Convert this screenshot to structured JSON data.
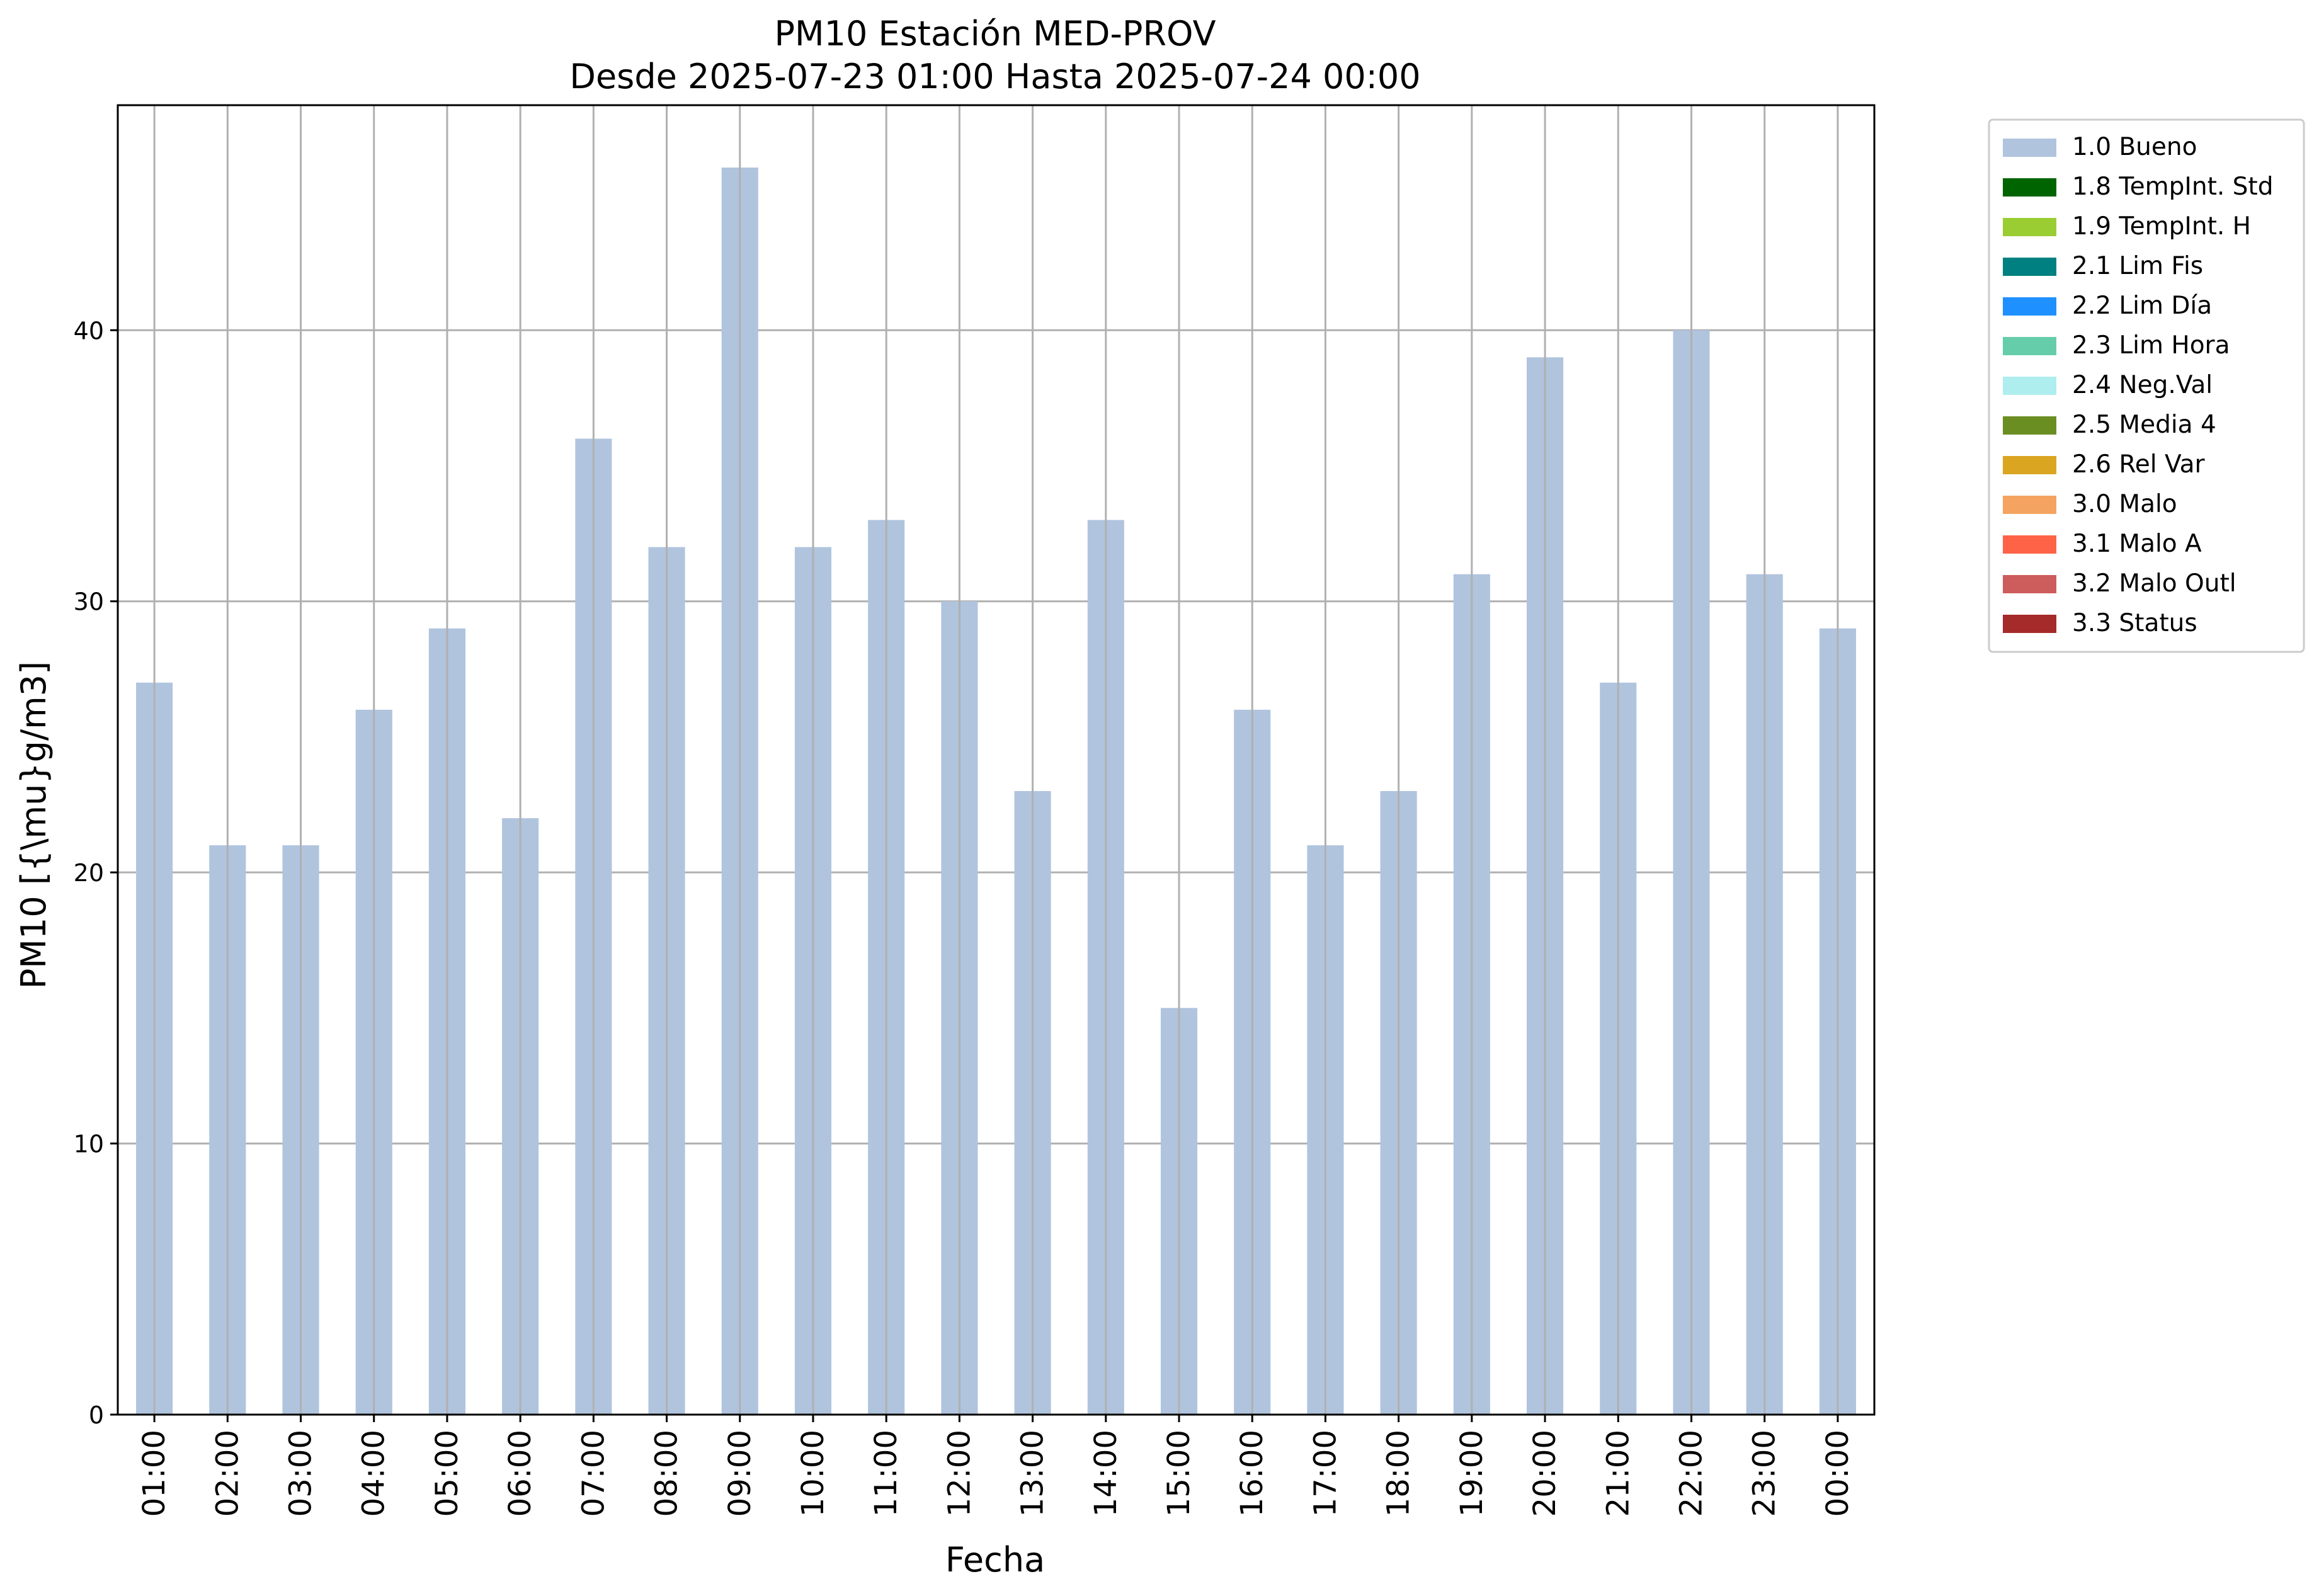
{
  "chart_data": {
    "type": "bar",
    "title": "PM10 Estación MED-PROV",
    "subtitle": "Desde 2025-07-23 01:00 Hasta 2025-07-24 00:00",
    "xlabel": "Fecha",
    "ylabel": "PM10 [{\\mu}g/m3]",
    "ylim": [
      0,
      48.3
    ],
    "yticks": [
      "0",
      "10",
      "20",
      "30",
      "40"
    ],
    "grid": true,
    "legend_position": "outside-right",
    "categories": [
      "01:00",
      "02:00",
      "03:00",
      "04:00",
      "05:00",
      "06:00",
      "07:00",
      "08:00",
      "09:00",
      "10:00",
      "11:00",
      "12:00",
      "13:00",
      "14:00",
      "15:00",
      "16:00",
      "17:00",
      "18:00",
      "19:00",
      "20:00",
      "21:00",
      "22:00",
      "23:00",
      "00:00"
    ],
    "series": [
      {
        "name": "1.0 Bueno",
        "color": "#b0c4de",
        "values": [
          27,
          21,
          21,
          26,
          29,
          22,
          36,
          32,
          46,
          32,
          33,
          30,
          23,
          33,
          15,
          26,
          21,
          23,
          31,
          39,
          27,
          40,
          31,
          29
        ]
      }
    ],
    "legend": [
      {
        "label": "1.0 Bueno",
        "color": "#b0c4de"
      },
      {
        "label": "1.8 TempInt. Std",
        "color": "#006400"
      },
      {
        "label": "1.9 TempInt. H",
        "color": "#9acd32"
      },
      {
        "label": "2.1 Lim Fis",
        "color": "#008080"
      },
      {
        "label": "2.2 Lim Día",
        "color": "#1e90ff"
      },
      {
        "label": "2.3 Lim Hora",
        "color": "#66cdaa"
      },
      {
        "label": "2.4 Neg.Val",
        "color": "#afeeee"
      },
      {
        "label": "2.5 Media 4",
        "color": "#6b8e23"
      },
      {
        "label": "2.6 Rel Var",
        "color": "#daa520"
      },
      {
        "label": "3.0 Malo",
        "color": "#f4a460"
      },
      {
        "label": "3.1 Malo A",
        "color": "#ff6347"
      },
      {
        "label": "3.2 Malo Outl",
        "color": "#cd5c5c"
      },
      {
        "label": "3.3 Status",
        "color": "#a52a2a"
      }
    ]
  }
}
